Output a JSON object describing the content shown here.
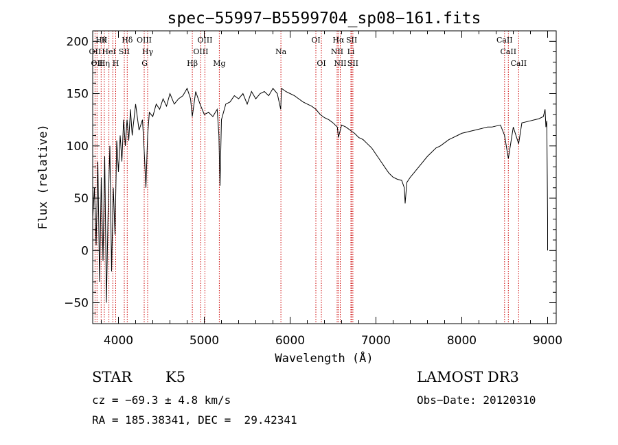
{
  "chart_data": {
    "type": "line",
    "title": "spec−55997−B5599704_sp08−161.fits",
    "xlabel": "Wavelength (Å)",
    "ylabel": "Flux (relative)",
    "xlim": [
      3700,
      9100
    ],
    "ylim": [
      -70,
      210
    ],
    "xticks": [
      {
        "value": 4000,
        "label": "4000"
      },
      {
        "value": 5000,
        "label": "5000"
      },
      {
        "value": 6000,
        "label": "6000"
      },
      {
        "value": 7000,
        "label": "7000"
      },
      {
        "value": 8000,
        "label": "8000"
      },
      {
        "value": 9000,
        "label": "9000"
      }
    ],
    "yticks": [
      {
        "value": -50,
        "label": "−50"
      },
      {
        "value": 0,
        "label": "0"
      },
      {
        "value": 50,
        "label": "50"
      },
      {
        "value": 100,
        "label": "100"
      },
      {
        "value": 150,
        "label": "150"
      },
      {
        "value": 200,
        "label": "200"
      }
    ],
    "series": [
      {
        "points": [
          [
            3700,
            30
          ],
          [
            3720,
            60
          ],
          [
            3740,
            5
          ],
          [
            3760,
            85
          ],
          [
            3780,
            -30
          ],
          [
            3800,
            70
          ],
          [
            3820,
            -10
          ],
          [
            3840,
            90
          ],
          [
            3860,
            -50
          ],
          [
            3880,
            40
          ],
          [
            3900,
            100
          ],
          [
            3920,
            -20
          ],
          [
            3940,
            60
          ],
          [
            3960,
            15
          ],
          [
            3980,
            105
          ],
          [
            4000,
            75
          ],
          [
            4020,
            110
          ],
          [
            4040,
            85
          ],
          [
            4060,
            125
          ],
          [
            4080,
            100
          ],
          [
            4100,
            125
          ],
          [
            4120,
            105
          ],
          [
            4140,
            135
          ],
          [
            4160,
            110
          ],
          [
            4200,
            140
          ],
          [
            4240,
            115
          ],
          [
            4280,
            125
          ],
          [
            4300,
            95
          ],
          [
            4320,
            60
          ],
          [
            4340,
            110
          ],
          [
            4360,
            132
          ],
          [
            4400,
            128
          ],
          [
            4440,
            140
          ],
          [
            4480,
            135
          ],
          [
            4520,
            145
          ],
          [
            4560,
            138
          ],
          [
            4600,
            150
          ],
          [
            4650,
            140
          ],
          [
            4700,
            145
          ],
          [
            4750,
            148
          ],
          [
            4800,
            155
          ],
          [
            4840,
            145
          ],
          [
            4860,
            128
          ],
          [
            4900,
            152
          ],
          [
            4950,
            140
          ],
          [
            5000,
            130
          ],
          [
            5050,
            132
          ],
          [
            5100,
            128
          ],
          [
            5150,
            135
          ],
          [
            5170,
            110
          ],
          [
            5183,
            62
          ],
          [
            5200,
            125
          ],
          [
            5250,
            140
          ],
          [
            5300,
            142
          ],
          [
            5350,
            148
          ],
          [
            5400,
            145
          ],
          [
            5450,
            150
          ],
          [
            5500,
            140
          ],
          [
            5550,
            152
          ],
          [
            5600,
            145
          ],
          [
            5650,
            150
          ],
          [
            5700,
            152
          ],
          [
            5750,
            148
          ],
          [
            5800,
            155
          ],
          [
            5850,
            150
          ],
          [
            5890,
            135
          ],
          [
            5900,
            155
          ],
          [
            5950,
            152
          ],
          [
            6000,
            150
          ],
          [
            6050,
            148
          ],
          [
            6100,
            145
          ],
          [
            6150,
            142
          ],
          [
            6200,
            140
          ],
          [
            6250,
            138
          ],
          [
            6300,
            135
          ],
          [
            6350,
            130
          ],
          [
            6400,
            127
          ],
          [
            6450,
            125
          ],
          [
            6500,
            122
          ],
          [
            6550,
            118
          ],
          [
            6562,
            108
          ],
          [
            6600,
            120
          ],
          [
            6650,
            118
          ],
          [
            6700,
            115
          ],
          [
            6750,
            112
          ],
          [
            6800,
            108
          ],
          [
            6850,
            106
          ],
          [
            6900,
            102
          ],
          [
            6950,
            98
          ],
          [
            7000,
            92
          ],
          [
            7050,
            86
          ],
          [
            7100,
            80
          ],
          [
            7150,
            74
          ],
          [
            7200,
            70
          ],
          [
            7250,
            68
          ],
          [
            7300,
            67
          ],
          [
            7330,
            60
          ],
          [
            7340,
            45
          ],
          [
            7360,
            65
          ],
          [
            7400,
            70
          ],
          [
            7450,
            75
          ],
          [
            7500,
            80
          ],
          [
            7550,
            85
          ],
          [
            7600,
            90
          ],
          [
            7650,
            94
          ],
          [
            7700,
            98
          ],
          [
            7750,
            100
          ],
          [
            7800,
            103
          ],
          [
            7850,
            106
          ],
          [
            7900,
            108
          ],
          [
            7950,
            110
          ],
          [
            8000,
            112
          ],
          [
            8050,
            113
          ],
          [
            8100,
            114
          ],
          [
            8150,
            115
          ],
          [
            8200,
            116
          ],
          [
            8250,
            117
          ],
          [
            8300,
            118
          ],
          [
            8350,
            118
          ],
          [
            8400,
            119
          ],
          [
            8450,
            120
          ],
          [
            8498,
            110
          ],
          [
            8542,
            88
          ],
          [
            8600,
            118
          ],
          [
            8662,
            102
          ],
          [
            8700,
            122
          ],
          [
            8750,
            123
          ],
          [
            8800,
            124
          ],
          [
            8850,
            125
          ],
          [
            8900,
            126
          ],
          [
            8950,
            128
          ],
          [
            8970,
            135
          ],
          [
            8980,
            118
          ],
          [
            8990,
            124
          ],
          [
            9000,
            30
          ],
          [
            9000,
            0
          ]
        ]
      }
    ],
    "line_labels": [
      {
        "wavelength": 3798,
        "label": "Hθ",
        "row": 1
      },
      {
        "wavelength": 3835,
        "label": "K",
        "row": 1
      },
      {
        "wavelength": 4102,
        "label": "Hδ",
        "row": 1
      },
      {
        "wavelength": 4300,
        "label": "OIII",
        "row": 1
      },
      {
        "wavelength": 5007,
        "label": "OIII",
        "row": 1
      },
      {
        "wavelength": 6300,
        "label": "OI",
        "row": 1
      },
      {
        "wavelength": 6563,
        "label": "Hα",
        "row": 1
      },
      {
        "wavelength": 6717,
        "label": "SII",
        "row": 1
      },
      {
        "wavelength": 8498,
        "label": "CaII",
        "row": 1
      },
      {
        "wavelength": 3727,
        "label": "OII",
        "row": 2
      },
      {
        "wavelength": 3889,
        "label": "HeI",
        "row": 2
      },
      {
        "wavelength": 4068,
        "label": "SII",
        "row": 2
      },
      {
        "wavelength": 4340,
        "label": "Hγ",
        "row": 2
      },
      {
        "wavelength": 4959,
        "label": "OIII",
        "row": 2
      },
      {
        "wavelength": 5893,
        "label": "Na",
        "row": 2
      },
      {
        "wavelength": 6548,
        "label": "NII",
        "row": 2
      },
      {
        "wavelength": 6708,
        "label": "Li",
        "row": 2
      },
      {
        "wavelength": 8542,
        "label": "CaII",
        "row": 2
      },
      {
        "wavelength": 3750,
        "label": "OII",
        "row": 3
      },
      {
        "wavelength": 3835,
        "label": "Hη",
        "row": 3
      },
      {
        "wavelength": 3968,
        "label": "H",
        "row": 3
      },
      {
        "wavelength": 4305,
        "label": "G",
        "row": 3
      },
      {
        "wavelength": 4861,
        "label": "Hβ",
        "row": 3
      },
      {
        "wavelength": 5175,
        "label": "Mg",
        "row": 3
      },
      {
        "wavelength": 6364,
        "label": "OI",
        "row": 3
      },
      {
        "wavelength": 6584,
        "label": "NII",
        "row": 3
      },
      {
        "wavelength": 6731,
        "label": "SII",
        "row": 3
      },
      {
        "wavelength": 8662,
        "label": "CaII",
        "row": 3
      }
    ],
    "line_marker_wavelengths": [
      3727,
      3750,
      3798,
      3835,
      3889,
      3934,
      3968,
      4068,
      4102,
      4300,
      4340,
      4861,
      4959,
      5007,
      5175,
      5893,
      6300,
      6364,
      6548,
      6563,
      6584,
      6708,
      6717,
      6731,
      8498,
      8542,
      8662
    ],
    "line_marker_color": "#cc0000"
  },
  "info": {
    "object_class": "STAR",
    "subclass": "K5",
    "survey": "LAMOST DR3",
    "cz": "cz = −69.3 ± 4.8 km/s",
    "obs_date": "Obs−Date: 20120310",
    "coords": "RA = 185.38341, DEC =  29.42341"
  }
}
